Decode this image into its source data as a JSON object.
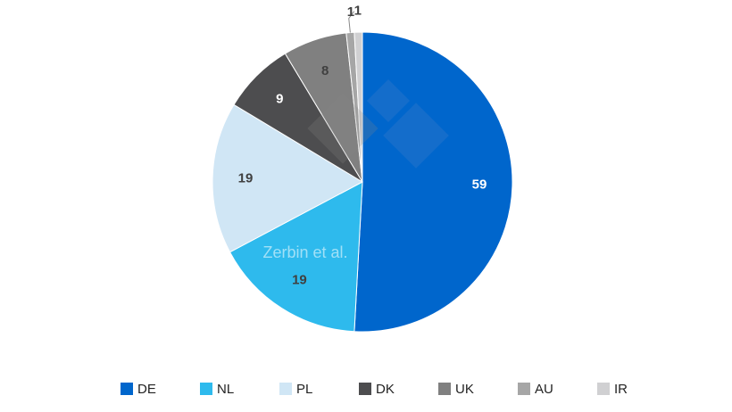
{
  "chart_data": {
    "type": "pie",
    "categories": [
      "DE",
      "NL",
      "PL",
      "DK",
      "UK",
      "AU",
      "IR"
    ],
    "values": [
      59,
      19,
      19,
      9,
      8,
      1,
      1
    ],
    "colors": [
      "#0066cc",
      "#2ebaed",
      "#d0e6f5",
      "#4d4d4f",
      "#808080",
      "#a6a6a6",
      "#d0d0d2"
    ],
    "watermark": "Zerbin et al.",
    "legend": "bottom"
  }
}
